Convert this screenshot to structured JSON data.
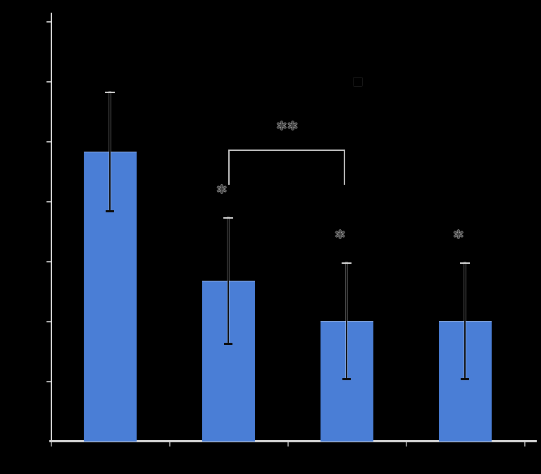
{
  "background": "#000000",
  "colors": {
    "bar": "#4a7ed6",
    "axis": "#e4e4e4",
    "y_tick": "#b9b9b9",
    "x_tick": "#8f8f8f",
    "error_line": "#0d0d0d",
    "error_cap_top": "#d8d8d8",
    "error_cap_bottom": "#0a0a0a",
    "bracket": "#c6c6c6",
    "sig_text": "#3c3c3c"
  },
  "title": "",
  "legend": {
    "swatch_color": "#4a7ed6",
    "label": ""
  },
  "axes": {
    "x_title": "",
    "y_title": "",
    "x_labels": [
      "",
      "",
      "",
      ""
    ],
    "y_tick_labels": [
      "",
      "",
      "",
      "",
      "",
      "",
      ""
    ]
  },
  "chart_data": {
    "type": "bar",
    "categories": [
      "",
      "",
      "",
      ""
    ],
    "values": [
      4.82,
      2.67,
      2.0,
      2.0
    ],
    "errors": [
      1.0,
      1.06,
      0.98,
      0.98
    ],
    "bar_sig_markers": [
      "",
      "*",
      "*",
      "*"
    ],
    "bracket": {
      "from": 1,
      "to": 2,
      "label": "**"
    },
    "title": "",
    "xlabel": "",
    "ylabel": "",
    "ylim": [
      0,
      7.1
    ],
    "y_tick_step": 1,
    "grid": false,
    "legend_position": "upper-right",
    "text_illegible": true
  }
}
